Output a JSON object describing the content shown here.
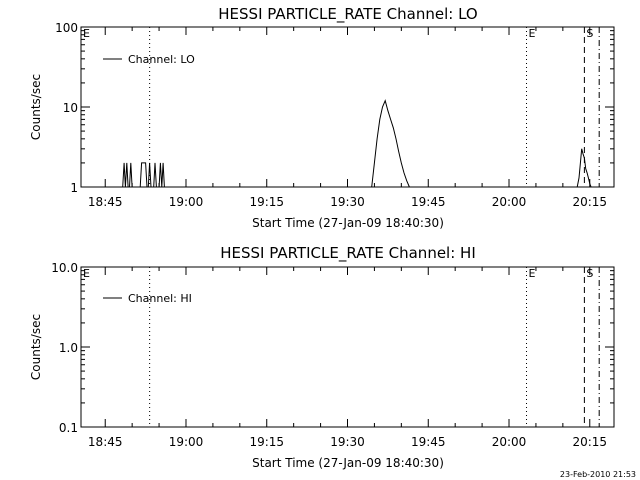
{
  "footer": {
    "timestamp": "23-Feb-2010 21:53"
  },
  "chart_data": [
    {
      "type": "line",
      "title": "HESSI PARTICLE_RATE Channel: LO",
      "xlabel": "Start Time (27-Jan-09 18:40:30)",
      "ylabel": "Counts/sec",
      "yscale": "log",
      "ylim": [
        1,
        100
      ],
      "xlim": [
        "18:40:30",
        "20:19:30"
      ],
      "xticks": [
        "18:45",
        "19:00",
        "19:15",
        "19:30",
        "19:45",
        "20:00",
        "20:15"
      ],
      "yticks": [
        "1",
        "10",
        "100"
      ],
      "grid": false,
      "legend_position": "top-left",
      "series": [
        {
          "name": "Channel: LO",
          "x": [
            "18:48:15",
            "18:48:30",
            "18:48:45",
            "18:49:00",
            "18:49:15",
            "18:49:30",
            "18:49:45",
            "18:50:00",
            "18:50:15",
            "18:50:30",
            "18:50:45",
            "18:51:00",
            "18:51:15",
            "18:51:30",
            "18:51:45",
            "18:52:00",
            "18:52:15",
            "18:52:30",
            "18:52:45",
            "18:53:00",
            "18:53:15",
            "18:53:30",
            "18:53:45",
            "18:54:00",
            "18:54:15",
            "18:54:30",
            "18:54:45",
            "18:55:00",
            "18:55:15",
            "18:55:30",
            "18:55:45",
            "18:56:00",
            "18:56:15",
            "18:56:30",
            "18:56:45",
            "18:57:00",
            "18:57:15",
            "19:34:30",
            "19:35:00",
            "19:35:30",
            "19:36:00",
            "19:36:30",
            "19:37:00",
            "19:37:30",
            "19:38:00",
            "19:38:30",
            "19:39:00",
            "19:39:30",
            "19:40:00",
            "19:40:30",
            "19:41:00",
            "19:41:30",
            "20:12:40",
            "20:13:00",
            "20:13:15",
            "20:13:30",
            "20:13:45",
            "20:14:00",
            "20:14:15",
            "20:14:30",
            "20:14:45",
            "20:15:00",
            "20:15:15"
          ],
          "y": [
            1,
            2,
            1,
            2,
            1,
            1,
            2,
            1,
            1,
            1,
            1,
            1,
            1,
            1,
            2,
            2,
            2,
            2,
            1,
            1,
            2,
            1,
            1,
            1,
            2,
            1,
            1,
            1,
            2,
            1,
            2,
            1,
            1,
            1,
            1,
            1,
            1,
            1,
            2,
            4,
            7,
            10,
            12,
            9,
            7,
            5.5,
            4,
            2.8,
            2,
            1.5,
            1.2,
            1,
            1,
            1.3,
            2,
            3,
            2.6,
            2.3,
            1.7,
            1.5,
            1.3,
            1.1,
            1
          ]
        }
      ],
      "markers": [
        {
          "label": "E",
          "time": "18:40:30",
          "style": "solid"
        },
        {
          "time": "18:53:15",
          "style": "dotted"
        },
        {
          "label": "E",
          "time": "20:03:15",
          "style": "dotted"
        },
        {
          "label": "S",
          "time": "20:14:00",
          "style": "dashed"
        },
        {
          "time": "20:16:45",
          "style": "dashdot"
        }
      ]
    },
    {
      "type": "line",
      "title": "HESSI PARTICLE_RATE Channel: HI",
      "xlabel": "Start Time (27-Jan-09 18:40:30)",
      "ylabel": "Counts/sec",
      "yscale": "log",
      "ylim": [
        0.1,
        10
      ],
      "xlim": [
        "18:40:30",
        "20:19:30"
      ],
      "xticks": [
        "18:45",
        "19:00",
        "19:15",
        "19:30",
        "19:45",
        "20:00",
        "20:15"
      ],
      "yticks": [
        "0.1",
        "1.0",
        "10.0"
      ],
      "grid": false,
      "legend_position": "top-left",
      "series": [
        {
          "name": "Channel: HI",
          "x": [],
          "y": []
        }
      ],
      "markers": [
        {
          "label": "E",
          "time": "18:40:30",
          "style": "solid"
        },
        {
          "time": "18:53:15",
          "style": "dotted"
        },
        {
          "label": "E",
          "time": "20:03:15",
          "style": "dotted"
        },
        {
          "label": "S",
          "time": "20:14:00",
          "style": "dashed"
        },
        {
          "time": "20:16:45",
          "style": "dashdot"
        }
      ]
    }
  ]
}
